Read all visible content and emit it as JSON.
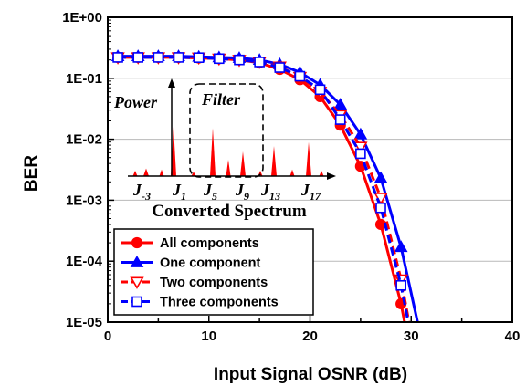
{
  "chart_data": {
    "type": "line",
    "xlabel": "Input Signal OSNR (dB)",
    "ylabel": "BER",
    "x_ticks": [
      "0",
      "10",
      "20",
      "30",
      "40"
    ],
    "y_ticks": [
      "1E+00",
      "1E-01",
      "1E-02",
      "1E-03",
      "1E-04",
      "1E-05"
    ],
    "xlim": [
      0,
      40
    ],
    "ylim": [
      1e-05,
      1
    ],
    "y_scale": "log",
    "grid": "horizontal",
    "legend_position": "bottom-left",
    "series": [
      {
        "name": "All components",
        "color": "#ff0000",
        "marker": "filled-circle",
        "line": "solid",
        "x": [
          1,
          3,
          5,
          7,
          9,
          11,
          13,
          15,
          17,
          19,
          21,
          23,
          25,
          27,
          29
        ],
        "y": [
          0.22,
          0.22,
          0.22,
          0.22,
          0.215,
          0.21,
          0.2,
          0.18,
          0.14,
          0.095,
          0.05,
          0.017,
          0.0036,
          0.0004,
          2e-05
        ]
      },
      {
        "name": "One component",
        "color": "#0000ff",
        "marker": "filled-triangle",
        "line": "solid",
        "x": [
          1,
          3,
          5,
          7,
          9,
          11,
          13,
          15,
          17,
          19,
          21,
          23,
          25,
          27,
          29
        ],
        "y": [
          0.23,
          0.23,
          0.23,
          0.23,
          0.225,
          0.22,
          0.215,
          0.2,
          0.17,
          0.125,
          0.078,
          0.037,
          0.012,
          0.0023,
          0.00017
        ]
      },
      {
        "name": "Two components",
        "color": "#ff0000",
        "marker": "open-triangle-down",
        "line": "dashed",
        "x": [
          1,
          3,
          5,
          7,
          9,
          11,
          13,
          15,
          17,
          19,
          21,
          23,
          25,
          27,
          29
        ],
        "y": [
          0.22,
          0.22,
          0.22,
          0.22,
          0.218,
          0.21,
          0.2,
          0.185,
          0.155,
          0.105,
          0.06,
          0.025,
          0.0075,
          0.0011,
          5e-05
        ]
      },
      {
        "name": "Three components",
        "color": "#0000ff",
        "marker": "open-square",
        "line": "dashed",
        "x": [
          1,
          3,
          5,
          7,
          9,
          11,
          13,
          15,
          17,
          19,
          21,
          23,
          25,
          27,
          29
        ],
        "y": [
          0.22,
          0.22,
          0.22,
          0.22,
          0.218,
          0.21,
          0.2,
          0.185,
          0.15,
          0.108,
          0.065,
          0.021,
          0.0058,
          0.00075,
          4e-05
        ]
      }
    ]
  },
  "inset": {
    "power_label": "Power",
    "filter_label": "Filter",
    "title": "Converted Spectrum",
    "spectrum_color": "#ff0000",
    "lines": [
      {
        "label": "J",
        "sub": "-3",
        "bold_sub": false,
        "level": 0.14
      },
      {
        "label": "J",
        "sub": "1",
        "bold_sub": false,
        "level": 0.9
      },
      {
        "label": "J",
        "sub": "5",
        "bold_sub": false,
        "level": 0.88
      },
      {
        "label": "J",
        "sub": "9",
        "bold_sub": false,
        "level": 0.45
      },
      {
        "label": "J",
        "sub": "13",
        "bold_sub": false,
        "level": 0.55
      },
      {
        "label": "J",
        "sub": "17",
        "bold_sub": false,
        "level": 0.62
      }
    ]
  }
}
